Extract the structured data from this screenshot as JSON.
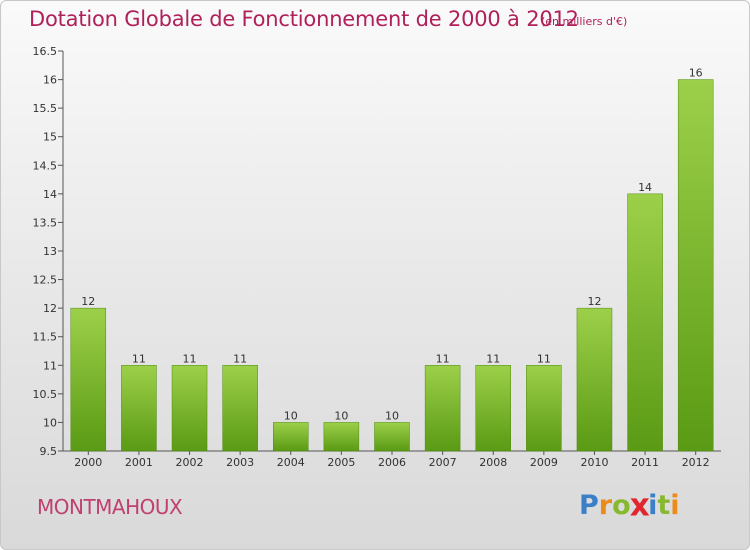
{
  "header": {
    "title": "Dotation Globale de Fonctionnement de 2000 à 2012",
    "subtitle": "(en milliers d'€)"
  },
  "footer": {
    "city": "MONTMAHOUX",
    "logo_letters": [
      "P",
      "r",
      "o",
      "x",
      "i",
      "t",
      "i"
    ],
    "logo_colors": [
      "#3a7fc8",
      "#ec8a1a",
      "#86b830",
      "#e0262e",
      "#3a7fc8",
      "#86b830",
      "#ec8a1a"
    ]
  },
  "colors": {
    "bar_top": "#9dd04a",
    "bar_bottom": "#5a9a14",
    "text": "#333333",
    "title": "#b0205a"
  },
  "chart_data": {
    "type": "bar",
    "categories": [
      "2000",
      "2001",
      "2002",
      "2003",
      "2004",
      "2005",
      "2006",
      "2007",
      "2008",
      "2009",
      "2010",
      "2011",
      "2012"
    ],
    "values": [
      12,
      11,
      11,
      11,
      10,
      10,
      10,
      11,
      11,
      11,
      12,
      14,
      16
    ],
    "data_labels": [
      "12",
      "11",
      "11",
      "11",
      "10",
      "10",
      "10",
      "11",
      "11",
      "11",
      "12",
      "14",
      "16"
    ],
    "ylim": [
      9.5,
      16.5
    ],
    "yticks": [
      "9.5",
      "10",
      "10.5",
      "11",
      "11.5",
      "12",
      "12.5",
      "13",
      "13.5",
      "14",
      "14.5",
      "15",
      "15.5",
      "16",
      "16.5"
    ],
    "grid": false,
    "xlabel": "",
    "ylabel": ""
  }
}
